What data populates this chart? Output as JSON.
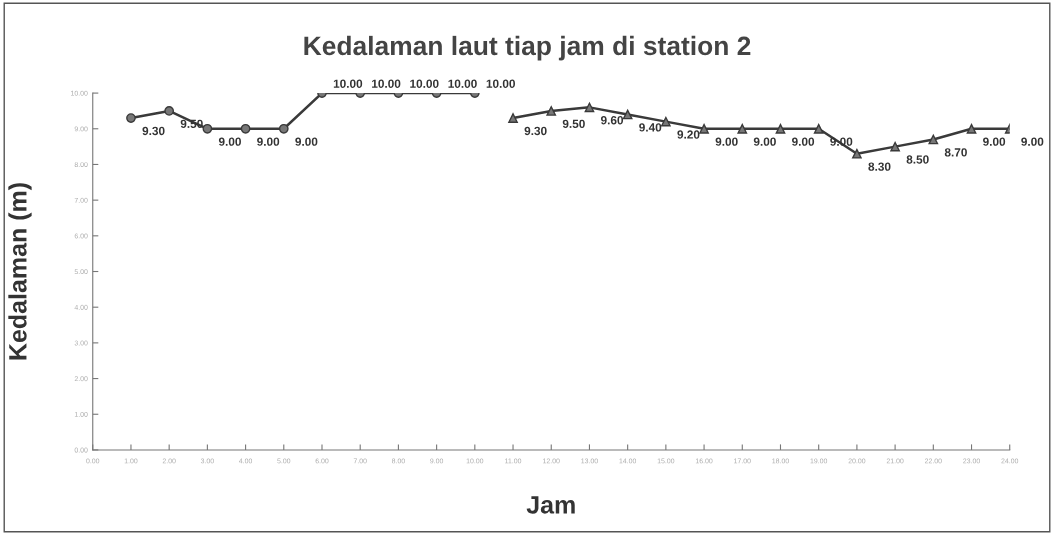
{
  "chart_data": {
    "type": "line",
    "title": "Kedalaman laut tiap jam di station 2",
    "xlabel": "Jam",
    "ylabel": "Kedalaman (m)",
    "series": [
      {
        "color": "#3a3a3a",
        "marker": "circle",
        "x": [
          1,
          2,
          3,
          4,
          5,
          6,
          7,
          8,
          9,
          10
        ],
        "values": [
          9.3,
          9.5,
          9.0,
          9.0,
          9.0,
          10.0,
          10.0,
          10.0,
          10.0,
          10.0
        ],
        "value_labels": [
          "9.30",
          "9.50",
          "9.00",
          "9.00",
          "9.00",
          "10.00",
          "10.00",
          "10.00",
          "10.00",
          "10.00"
        ]
      },
      {
        "color": "#3a3a3a",
        "marker": "triangle",
        "x": [
          11,
          12,
          13,
          14,
          15,
          16,
          17,
          18,
          19,
          20,
          21,
          22,
          23,
          24
        ],
        "values": [
          9.3,
          9.5,
          9.6,
          9.4,
          9.2,
          9.0,
          9.0,
          9.0,
          9.0,
          8.3,
          8.5,
          8.7,
          9.0,
          9.0
        ],
        "value_labels": [
          "9.30",
          "9.50",
          "9.60",
          "9.40",
          "9.20",
          "9.00",
          "9.00",
          "9.00",
          "9.00",
          "8.30",
          "8.50",
          "8.70",
          "9.00",
          "9.00"
        ]
      }
    ],
    "xlim": [
      0,
      24
    ],
    "xticks": [
      {
        "value": 0,
        "label": "0.00"
      },
      {
        "value": 1,
        "label": "1.00"
      },
      {
        "value": 2,
        "label": "2.00"
      },
      {
        "value": 3,
        "label": "3.00"
      },
      {
        "value": 4,
        "label": "4.00"
      },
      {
        "value": 5,
        "label": "5.00"
      },
      {
        "value": 6,
        "label": "6.00"
      },
      {
        "value": 7,
        "label": "7.00"
      },
      {
        "value": 8,
        "label": "8.00"
      },
      {
        "value": 9,
        "label": "9.00"
      },
      {
        "value": 10,
        "label": "10.00"
      },
      {
        "value": 11,
        "label": "11.00"
      },
      {
        "value": 12,
        "label": "12.00"
      },
      {
        "value": 13,
        "label": "13.00"
      },
      {
        "value": 14,
        "label": "14.00"
      },
      {
        "value": 15,
        "label": "15.00"
      },
      {
        "value": 16,
        "label": "16.00"
      },
      {
        "value": 17,
        "label": "17.00"
      },
      {
        "value": 18,
        "label": "18.00"
      },
      {
        "value": 19,
        "label": "19.00"
      },
      {
        "value": 20,
        "label": "20.00"
      },
      {
        "value": 21,
        "label": "21.00"
      },
      {
        "value": 22,
        "label": "22.00"
      },
      {
        "value": 23,
        "label": "23.00"
      },
      {
        "value": 24,
        "label": "24.00"
      }
    ],
    "ylim": [
      0,
      10
    ],
    "yticks": [
      {
        "value": 0,
        "label": "0.00"
      },
      {
        "value": 1,
        "label": "1.00"
      },
      {
        "value": 2,
        "label": "2.00"
      },
      {
        "value": 3,
        "label": "3.00"
      },
      {
        "value": 4,
        "label": "4.00"
      },
      {
        "value": 5,
        "label": "5.00"
      },
      {
        "value": 6,
        "label": "6.00"
      },
      {
        "value": 7,
        "label": "7.00"
      },
      {
        "value": 8,
        "label": "8.00"
      },
      {
        "value": 9,
        "label": "9.00"
      },
      {
        "value": 10,
        "label": "10.00"
      }
    ],
    "grid": false,
    "legend": false,
    "line_style": "solid"
  }
}
